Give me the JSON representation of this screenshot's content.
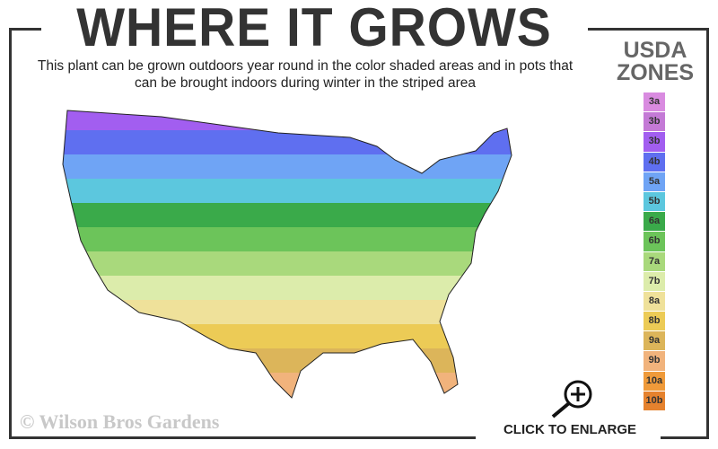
{
  "header": {
    "title": "WHERE IT GROWS",
    "subtitle": "This plant can be grown outdoors year round in the color shaded areas and in pots that can be brought indoors during winter in the striped area"
  },
  "legend": {
    "title_line1": "USDA",
    "title_line2": "ZONES",
    "zones": [
      {
        "label": "3a",
        "color": "#d98be0"
      },
      {
        "label": "3b",
        "color": "#c47ad6"
      },
      {
        "label": "3b",
        "color": "#a25ef0"
      },
      {
        "label": "4b",
        "color": "#5f6ff0"
      },
      {
        "label": "5a",
        "color": "#6fa4f5"
      },
      {
        "label": "5b",
        "color": "#5cc7de"
      },
      {
        "label": "6a",
        "color": "#3aaa4a"
      },
      {
        "label": "6b",
        "color": "#6cc45a"
      },
      {
        "label": "7a",
        "color": "#a9d97c"
      },
      {
        "label": "7b",
        "color": "#dcecab"
      },
      {
        "label": "8a",
        "color": "#efe19a"
      },
      {
        "label": "8b",
        "color": "#eccb56"
      },
      {
        "label": "9a",
        "color": "#dcb55a"
      },
      {
        "label": "9b",
        "color": "#f1b37c"
      },
      {
        "label": "10a",
        "color": "#ef9a3a"
      },
      {
        "label": "10b",
        "color": "#e5822e"
      }
    ]
  },
  "footer": {
    "copyright": "© Wilson Bros Gardens",
    "enlarge_label": "CLICK TO ENLARGE",
    "enlarge_icon": "magnifier-plus-icon"
  }
}
